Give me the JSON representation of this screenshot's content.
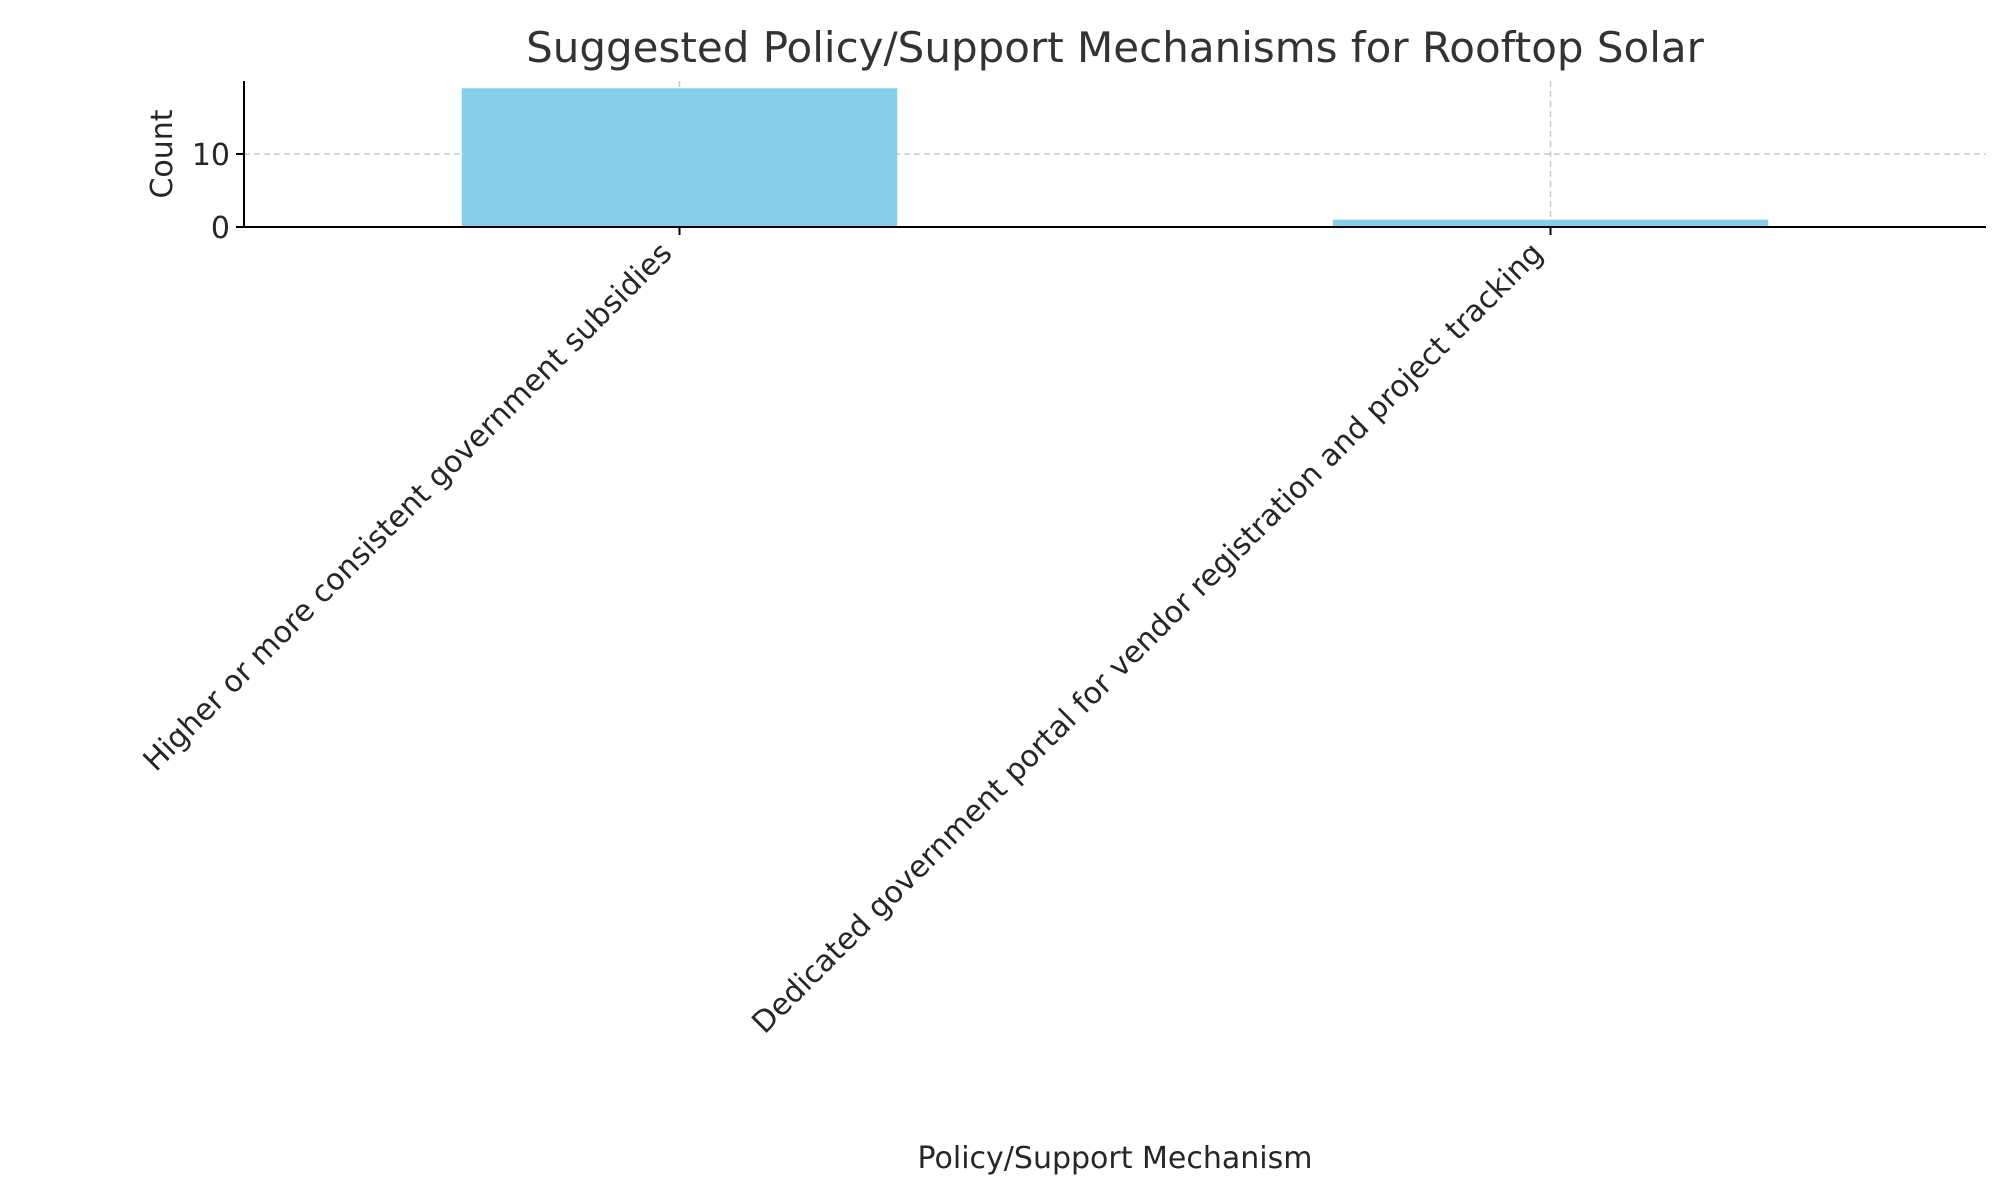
{
  "chart_data": {
    "type": "bar",
    "title": "Suggested Policy/Support Mechanisms for Rooftop Solar",
    "xlabel": "Policy/Support Mechanism",
    "ylabel": "Count",
    "categories": [
      "Higher or more consistent government subsidies",
      "Dedicated government portal for vendor registration and project tracking"
    ],
    "values": [
      19,
      1
    ],
    "ylim": [
      0,
      20
    ],
    "yticks": [
      0,
      10
    ],
    "grid": true,
    "legend": "none",
    "colors": {
      "bar": "#87CEEB",
      "grid": "#c8c8c8",
      "axis": "#000000",
      "title": "#333333",
      "text": "#262626"
    }
  }
}
